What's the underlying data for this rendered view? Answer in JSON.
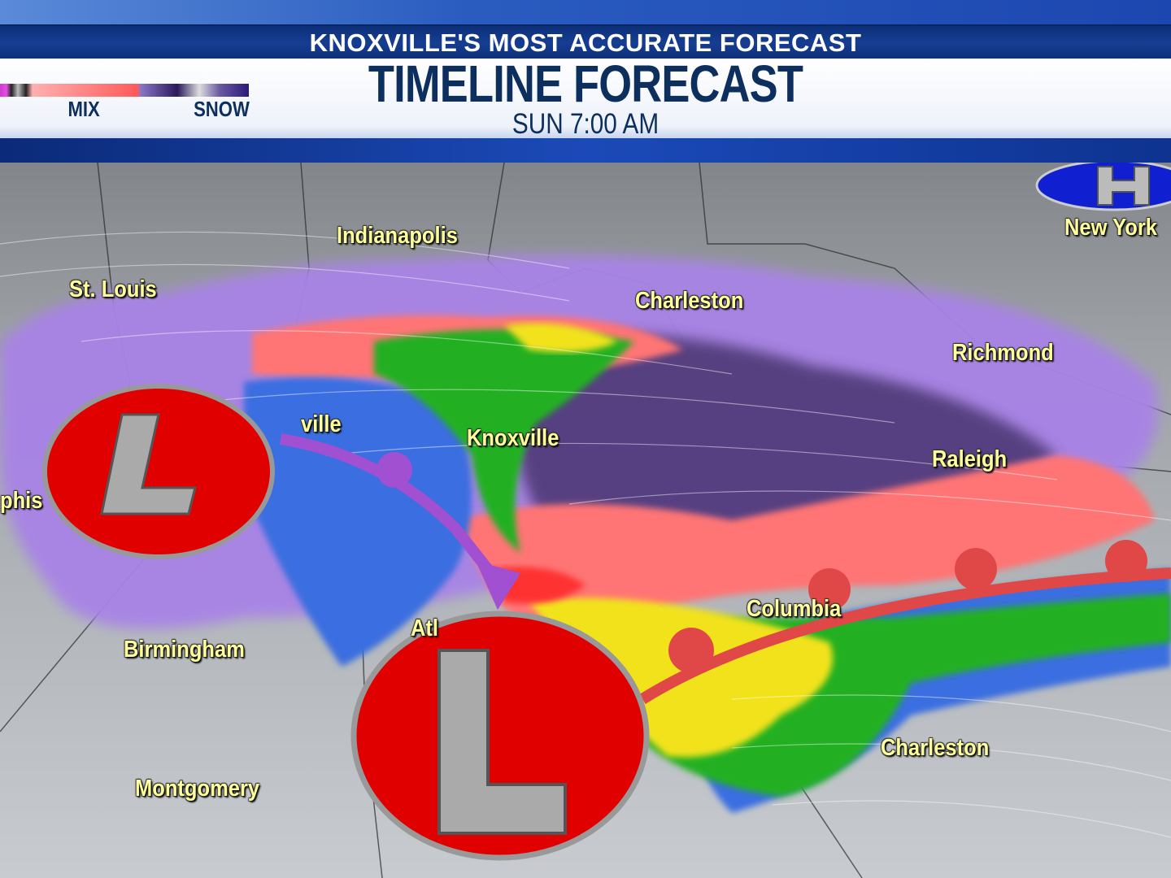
{
  "header": {
    "banner": "KNOXVILLE'S MOST ACCURATE FORECAST",
    "title": "TIMELINE FORECAST",
    "valid_time": "SUN 7:00 AM"
  },
  "legend": {
    "labels": [
      "MIX",
      "SNOW"
    ],
    "colors": {
      "rain_heavy": "#e040e0",
      "mix": "#ff5a5a",
      "snow": "#2a1a7a"
    }
  },
  "map": {
    "cities": [
      "Indianapolis",
      "St. Louis",
      "Charleston",
      "Richmond",
      "New York",
      "ville",
      "Knoxville",
      "Raleigh",
      "phis",
      "Columbia",
      "Atl",
      "Birmingham",
      "Charleston",
      "Montgomery"
    ],
    "pressure_centers": [
      {
        "type": "low",
        "label": "L",
        "color": "#e00000"
      },
      {
        "type": "low",
        "label": "L",
        "color": "#e00000"
      },
      {
        "type": "high",
        "label": "H",
        "color": "#1020d0"
      }
    ],
    "fronts": [
      {
        "type": "occluded",
        "color": "#a050d0"
      },
      {
        "type": "warm",
        "color": "#e04848"
      }
    ],
    "precip_colors": {
      "snow_light": "#a080e0",
      "snow_heavy": "#4a3070",
      "mix": "#ff7070",
      "rain_light": "#3a70e0",
      "rain_mod": "#20b020",
      "rain_heavy": "#f0e020",
      "rain_intense": "#f02020"
    }
  }
}
